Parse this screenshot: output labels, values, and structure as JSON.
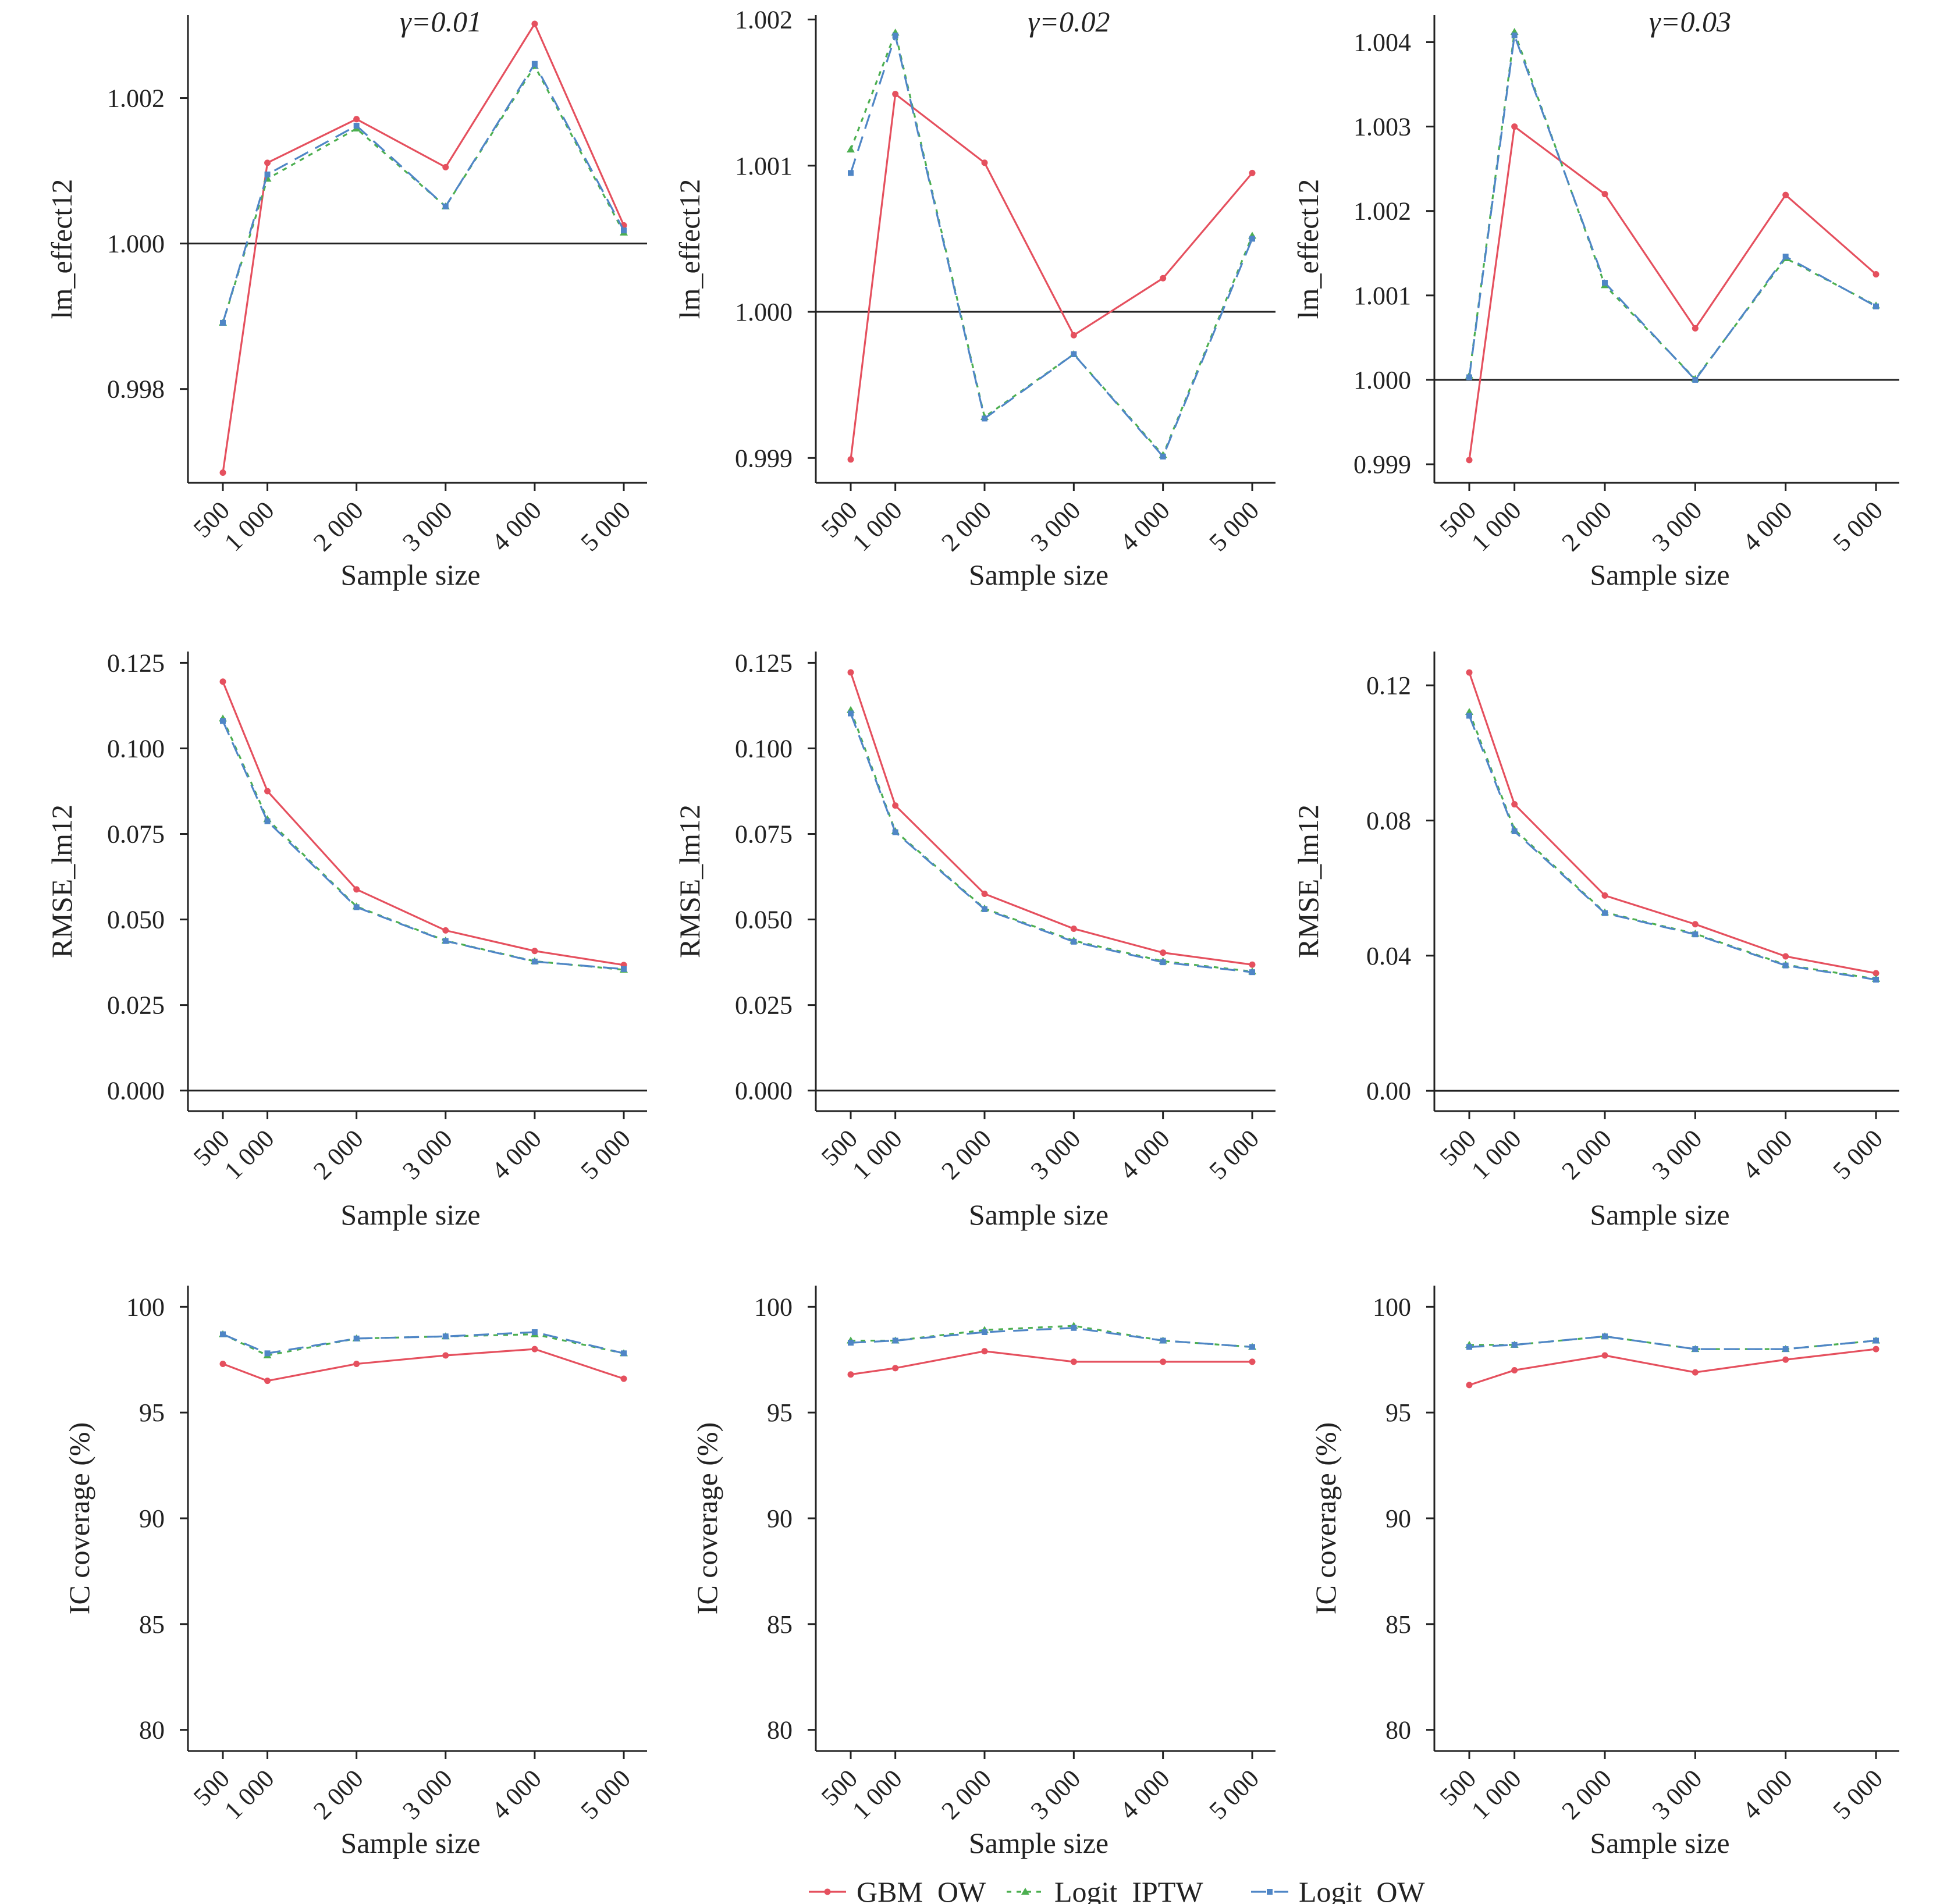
{
  "legend": [
    {
      "name": "GBM_OW",
      "color": "#e5505e",
      "dash": "solid",
      "marker": "dot"
    },
    {
      "name": "Logit_IPTW",
      "color": "#4caf50",
      "dash": "dotted",
      "marker": "triangle"
    },
    {
      "name": "Logit_OW",
      "color": "#4f86c6",
      "dash": "dashed",
      "marker": "square"
    }
  ],
  "chart_data": [
    {
      "type": "line",
      "title": "γ=0.01",
      "xlabel": "Sample size",
      "ylabel": "lm_effect12",
      "categories": [
        "500",
        "1 000",
        "2 000",
        "3 000",
        "4 000",
        "5 000"
      ],
      "x": [
        500,
        1000,
        2000,
        3000,
        4000,
        5000
      ],
      "ylim": [
        0.99671,
        1.00314
      ],
      "yticks": [
        0.998,
        1.0,
        1.002
      ],
      "ytick_labels": [
        "0.998",
        "1.000",
        "1.002"
      ],
      "reference_line": 1.0,
      "series": [
        {
          "name": "GBM_OW",
          "values": [
            0.99685,
            1.00111,
            1.00171,
            1.00105,
            1.00302,
            1.00025
          ]
        },
        {
          "name": "Logit_IPTW",
          "values": [
            0.99891,
            1.00089,
            1.00158,
            1.00051,
            1.00244,
            1.00015
          ]
        },
        {
          "name": "Logit_OW",
          "values": [
            0.99891,
            1.00095,
            1.00162,
            1.00051,
            1.00247,
            1.00018
          ]
        }
      ]
    },
    {
      "type": "line",
      "title": "γ=0.02",
      "xlabel": "Sample size",
      "ylabel": "lm_effect12",
      "categories": [
        "500",
        "1 000",
        "2 000",
        "3 000",
        "4 000",
        "5 000"
      ],
      "x": [
        500,
        1000,
        2000,
        3000,
        4000,
        5000
      ],
      "ylim": [
        0.99883,
        1.00203
      ],
      "yticks": [
        0.999,
        1.0,
        1.001,
        1.002
      ],
      "ytick_labels": [
        "0.999",
        "1.000",
        "1.001",
        "1.002"
      ],
      "reference_line": 1.0,
      "series": [
        {
          "name": "GBM_OW",
          "values": [
            0.99899,
            1.00149,
            1.00102,
            0.99984,
            1.00023,
            1.00095
          ]
        },
        {
          "name": "Logit_IPTW",
          "values": [
            1.00111,
            1.00191,
            0.99928,
            0.99971,
            0.99902,
            1.00052
          ]
        },
        {
          "name": "Logit_OW",
          "values": [
            1.00095,
            1.00189,
            0.99927,
            0.99971,
            0.99901,
            1.0005
          ]
        }
      ]
    },
    {
      "type": "line",
      "title": "γ=0.03",
      "xlabel": "Sample size",
      "ylabel": "lm_effect12",
      "categories": [
        "500",
        "1 000",
        "2 000",
        "3 000",
        "4 000",
        "5 000"
      ],
      "x": [
        500,
        1000,
        2000,
        3000,
        4000,
        5000
      ],
      "ylim": [
        0.99878,
        1.00432
      ],
      "yticks": [
        0.999,
        1.0,
        1.001,
        1.002,
        1.003,
        1.004
      ],
      "ytick_labels": [
        "0.999",
        "1.000",
        "1.001",
        "1.002",
        "1.003",
        "1.004"
      ],
      "reference_line": 1.0,
      "series": [
        {
          "name": "GBM_OW",
          "values": [
            0.99905,
            1.003,
            1.0022,
            1.00061,
            1.00219,
            1.00125
          ]
        },
        {
          "name": "Logit_IPTW",
          "values": [
            1.00005,
            1.00412,
            1.00112,
            1.00001,
            1.00144,
            1.00088
          ]
        },
        {
          "name": "Logit_OW",
          "values": [
            1.00003,
            1.00408,
            1.00115,
            1.0,
            1.00146,
            1.00087
          ]
        }
      ]
    },
    {
      "type": "line",
      "xlabel": "Sample size",
      "ylabel": "RMSE_lm12",
      "categories": [
        "500",
        "1 000",
        "2 000",
        "3 000",
        "4 000",
        "5 000"
      ],
      "x": [
        500,
        1000,
        2000,
        3000,
        4000,
        5000
      ],
      "ylim": [
        -0.006,
        0.1283
      ],
      "yticks": [
        0.0,
        0.025,
        0.05,
        0.075,
        0.1,
        0.125
      ],
      "ytick_labels": [
        "0.000",
        "0.025",
        "0.050",
        "0.075",
        "0.100",
        "0.125"
      ],
      "reference_line": 0.0,
      "series": [
        {
          "name": "GBM_OW",
          "values": [
            0.1195,
            0.0875,
            0.0588,
            0.0468,
            0.0408,
            0.0367
          ]
        },
        {
          "name": "Logit_IPTW",
          "values": [
            0.1087,
            0.0793,
            0.0538,
            0.0438,
            0.0378,
            0.0353
          ]
        },
        {
          "name": "Logit_OW",
          "values": [
            0.108,
            0.0787,
            0.0536,
            0.0437,
            0.0377,
            0.0355
          ]
        }
      ]
    },
    {
      "type": "line",
      "xlabel": "Sample size",
      "ylabel": "RMSE_lm12",
      "categories": [
        "500",
        "1 000",
        "2 000",
        "3 000",
        "4 000",
        "5 000"
      ],
      "x": [
        500,
        1000,
        2000,
        3000,
        4000,
        5000
      ],
      "ylim": [
        -0.006,
        0.1283
      ],
      "yticks": [
        0.0,
        0.025,
        0.05,
        0.075,
        0.1,
        0.125
      ],
      "ytick_labels": [
        "0.000",
        "0.025",
        "0.050",
        "0.075",
        "0.100",
        "0.125"
      ],
      "reference_line": 0.0,
      "series": [
        {
          "name": "GBM_OW",
          "values": [
            0.1222,
            0.0833,
            0.0575,
            0.0473,
            0.0403,
            0.0368
          ]
        },
        {
          "name": "Logit_IPTW",
          "values": [
            0.1112,
            0.0758,
            0.0532,
            0.0438,
            0.0378,
            0.0348
          ]
        },
        {
          "name": "Logit_OW",
          "values": [
            0.1102,
            0.0755,
            0.053,
            0.0435,
            0.0375,
            0.0346
          ]
        }
      ]
    },
    {
      "type": "line",
      "xlabel": "Sample size",
      "ylabel": "RMSE_lm12",
      "categories": [
        "500",
        "1 000",
        "2 000",
        "3 000",
        "4 000",
        "5 000"
      ],
      "x": [
        500,
        1000,
        2000,
        3000,
        4000,
        5000
      ],
      "ylim": [
        -0.006,
        0.13
      ],
      "yticks": [
        0.0,
        0.04,
        0.08,
        0.12
      ],
      "ytick_labels": [
        "0.00",
        "0.04",
        "0.08",
        "0.12"
      ],
      "reference_line": 0.0,
      "series": [
        {
          "name": "GBM_OW",
          "values": [
            0.1238,
            0.0848,
            0.0578,
            0.0493,
            0.0398,
            0.0348
          ]
        },
        {
          "name": "Logit_IPTW",
          "values": [
            0.1121,
            0.0773,
            0.0528,
            0.0465,
            0.0373,
            0.0331
          ]
        },
        {
          "name": "Logit_OW",
          "values": [
            0.111,
            0.0768,
            0.0526,
            0.0463,
            0.0371,
            0.0329
          ]
        }
      ]
    },
    {
      "type": "line",
      "xlabel": "Sample size",
      "ylabel": "IC coverage (%)",
      "categories": [
        "500",
        "1 000",
        "2 000",
        "3 000",
        "4 000",
        "5 000"
      ],
      "x": [
        500,
        1000,
        2000,
        3000,
        4000,
        5000
      ],
      "ylim": [
        79.0,
        101.0
      ],
      "yticks": [
        80,
        85,
        90,
        95,
        100
      ],
      "ytick_labels": [
        "80",
        "85",
        "90",
        "95",
        "100"
      ],
      "series": [
        {
          "name": "GBM_OW",
          "values": [
            97.3,
            96.5,
            97.3,
            97.7,
            98.0,
            96.6
          ]
        },
        {
          "name": "Logit_IPTW",
          "values": [
            98.7,
            97.7,
            98.5,
            98.6,
            98.7,
            97.8
          ]
        },
        {
          "name": "Logit_OW",
          "values": [
            98.7,
            97.8,
            98.5,
            98.6,
            98.8,
            97.8
          ]
        }
      ]
    },
    {
      "type": "line",
      "xlabel": "Sample size",
      "ylabel": "IC coverage (%)",
      "categories": [
        "500",
        "1 000",
        "2 000",
        "3 000",
        "4 000",
        "5 000"
      ],
      "x": [
        500,
        1000,
        2000,
        3000,
        4000,
        5000
      ],
      "ylim": [
        79.0,
        101.0
      ],
      "yticks": [
        80,
        85,
        90,
        95,
        100
      ],
      "ytick_labels": [
        "80",
        "85",
        "90",
        "95",
        "100"
      ],
      "series": [
        {
          "name": "GBM_OW",
          "values": [
            96.8,
            97.1,
            97.9,
            97.4,
            97.4,
            97.4
          ]
        },
        {
          "name": "Logit_IPTW",
          "values": [
            98.4,
            98.4,
            98.9,
            99.1,
            98.4,
            98.1
          ]
        },
        {
          "name": "Logit_OW",
          "values": [
            98.3,
            98.4,
            98.8,
            99.0,
            98.4,
            98.1
          ]
        }
      ]
    },
    {
      "type": "line",
      "xlabel": "Sample size",
      "ylabel": "IC coverage (%)",
      "categories": [
        "500",
        "1 000",
        "2 000",
        "3 000",
        "4 000",
        "5 000"
      ],
      "x": [
        500,
        1000,
        2000,
        3000,
        4000,
        5000
      ],
      "ylim": [
        79.0,
        101.0
      ],
      "yticks": [
        80,
        85,
        90,
        95,
        100
      ],
      "ytick_labels": [
        "80",
        "85",
        "90",
        "95",
        "100"
      ],
      "series": [
        {
          "name": "GBM_OW",
          "values": [
            96.3,
            97.0,
            97.7,
            96.9,
            97.5,
            98.0
          ]
        },
        {
          "name": "Logit_IPTW",
          "values": [
            98.2,
            98.2,
            98.6,
            98.0,
            98.0,
            98.4
          ]
        },
        {
          "name": "Logit_OW",
          "values": [
            98.1,
            98.2,
            98.6,
            98.0,
            98.0,
            98.4
          ]
        }
      ]
    }
  ]
}
